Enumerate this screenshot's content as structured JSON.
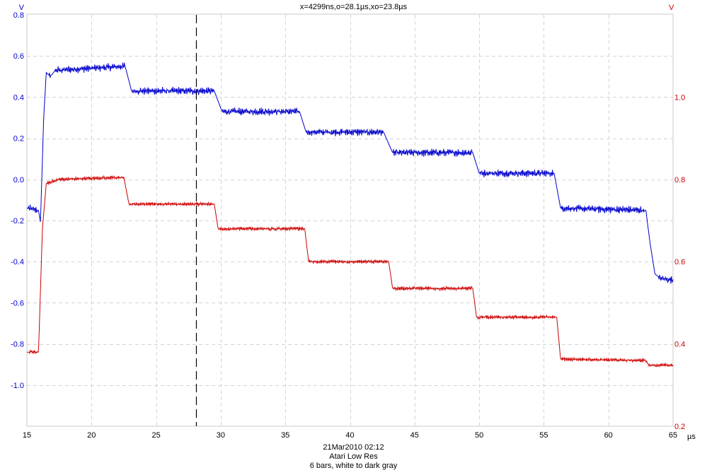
{
  "cursor_readout": "x=4299ns,o=28.1µs,xo=23.8µs",
  "footer": {
    "date": "21Mar2010  02:12",
    "line2": "Atari Low Res",
    "line3": "6 bars, white to dark gray"
  },
  "chart_data": {
    "type": "line",
    "xlim": [
      15,
      65
    ],
    "xticks": [
      15,
      20,
      25,
      30,
      35,
      40,
      45,
      50,
      55,
      60,
      65
    ],
    "x_unit": "µs",
    "left_axis": {
      "unit": "V",
      "color": "#0000cc",
      "ylim": [
        -1.2,
        0.8
      ],
      "ticks": [
        0.8,
        0.6,
        0.4,
        0.2,
        0.0,
        -0.2,
        -0.4,
        -0.6,
        -0.8,
        -1.0
      ],
      "tick_labels": [
        "0.8",
        "0.6",
        "0.4",
        "0.2",
        "0.0",
        "-0.2",
        "-0.4",
        "-0.6",
        "-0.8",
        "-1.0"
      ]
    },
    "right_axis": {
      "unit": "V",
      "color": "#cc0000",
      "ylim": [
        0.2,
        1.2
      ],
      "ticks": [
        1.0,
        0.8,
        0.6,
        0.4,
        0.2
      ],
      "tick_labels": [
        "1.0",
        "0.8",
        "0.6",
        "0.4",
        "0.2"
      ]
    },
    "grid": true,
    "cursor_x": 28.1,
    "series": [
      {
        "axis": "left",
        "color": "#0000cc",
        "noise": 0.012,
        "points": [
          [
            15,
            -0.14
          ],
          [
            15.9,
            -0.15
          ],
          [
            16.05,
            -0.21
          ],
          [
            16.3,
            0.3
          ],
          [
            16.5,
            0.52
          ],
          [
            16.8,
            0.5
          ],
          [
            17.2,
            0.53
          ],
          [
            22.6,
            0.55
          ],
          [
            23.1,
            0.43
          ],
          [
            29.5,
            0.43
          ],
          [
            30.1,
            0.33
          ],
          [
            36.1,
            0.33
          ],
          [
            36.6,
            0.23
          ],
          [
            42.6,
            0.23
          ],
          [
            43.3,
            0.13
          ],
          [
            49.5,
            0.13
          ],
          [
            50.0,
            0.03
          ],
          [
            55.8,
            0.03
          ],
          [
            56.3,
            -0.14
          ],
          [
            62.9,
            -0.15
          ],
          [
            63.2,
            -0.3
          ],
          [
            63.6,
            -0.46
          ],
          [
            64.0,
            -0.48
          ],
          [
            65,
            -0.49
          ]
        ]
      },
      {
        "axis": "right",
        "color": "#cc0000",
        "noise": 0.003,
        "points": [
          [
            15,
            0.38
          ],
          [
            15.9,
            0.38
          ],
          [
            16.2,
            0.68
          ],
          [
            16.5,
            0.79
          ],
          [
            17.5,
            0.8
          ],
          [
            22.5,
            0.805
          ],
          [
            22.9,
            0.74
          ],
          [
            29.5,
            0.74
          ],
          [
            29.8,
            0.68
          ],
          [
            36.5,
            0.68
          ],
          [
            36.8,
            0.6
          ],
          [
            43.0,
            0.6
          ],
          [
            43.3,
            0.535
          ],
          [
            49.5,
            0.535
          ],
          [
            49.8,
            0.465
          ],
          [
            56.0,
            0.465
          ],
          [
            56.3,
            0.363
          ],
          [
            62.8,
            0.36
          ],
          [
            63.2,
            0.348
          ],
          [
            65,
            0.348
          ]
        ]
      }
    ]
  }
}
